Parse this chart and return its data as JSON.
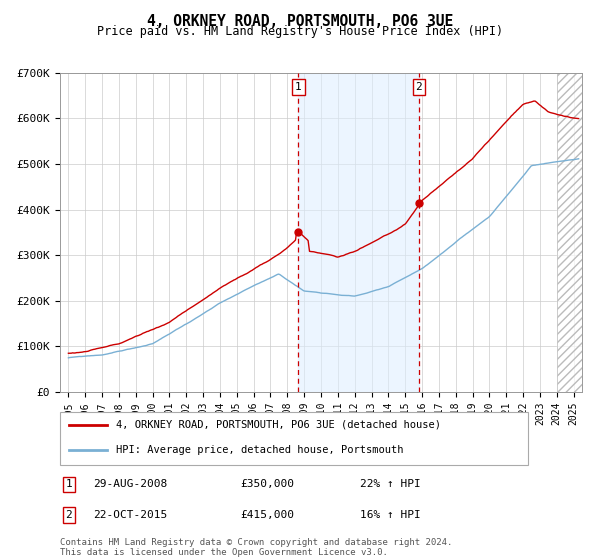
{
  "title": "4, ORKNEY ROAD, PORTSMOUTH, PO6 3UE",
  "subtitle": "Price paid vs. HM Land Registry's House Price Index (HPI)",
  "ylim": [
    0,
    700000
  ],
  "yticks": [
    0,
    100000,
    200000,
    300000,
    400000,
    500000,
    600000,
    700000
  ],
  "ytick_labels": [
    "£0",
    "£100K",
    "£200K",
    "£300K",
    "£400K",
    "£500K",
    "£600K",
    "£700K"
  ],
  "xlim_start": 1994.5,
  "xlim_end": 2025.5,
  "event1_x": 2008.66,
  "event1_label": "1",
  "event1_date": "29-AUG-2008",
  "event1_price": "£350,000",
  "event1_hpi": "22% ↑ HPI",
  "event2_x": 2015.81,
  "event2_label": "2",
  "event2_date": "22-OCT-2015",
  "event2_price": "£415,000",
  "event2_hpi": "16% ↑ HPI",
  "property_color": "#cc0000",
  "hpi_line_color": "#7ab0d4",
  "legend_property": "4, ORKNEY ROAD, PORTSMOUTH, PO6 3UE (detached house)",
  "legend_hpi": "HPI: Average price, detached house, Portsmouth",
  "footer": "Contains HM Land Registry data © Crown copyright and database right 2024.\nThis data is licensed under the Open Government Licence v3.0.",
  "shade_color": "#ddeeff",
  "shade_alpha": 0.55,
  "shade_start": 2008.66,
  "shade_end": 2015.81,
  "hatch_start": 2024.0,
  "hatch_end": 2025.5,
  "fig_width": 6.0,
  "fig_height": 5.6,
  "dpi": 100
}
